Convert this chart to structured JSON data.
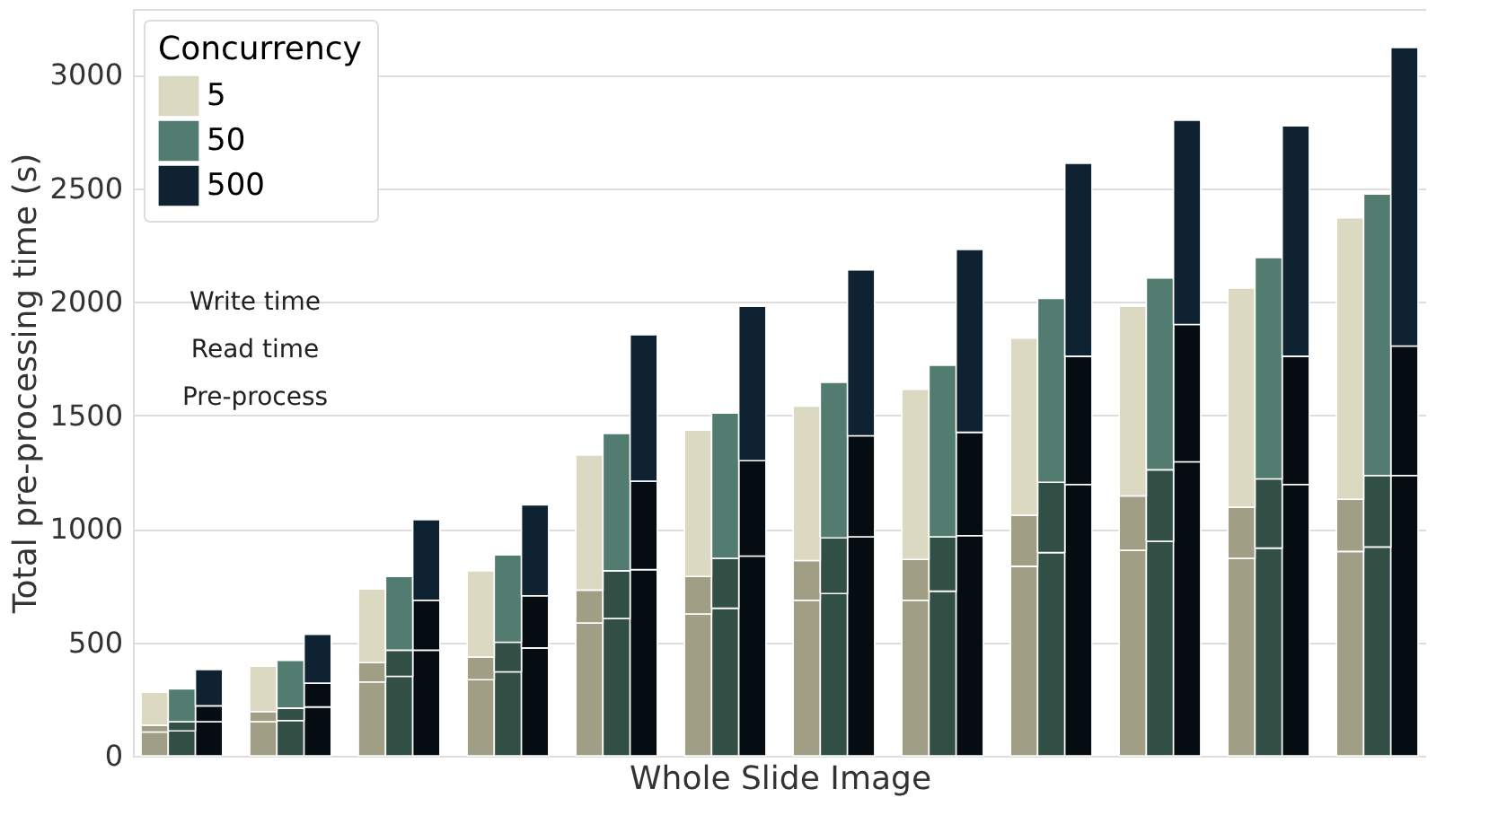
{
  "chart_data": {
    "type": "bar",
    "stacked": true,
    "xlabel": "Whole Slide Image",
    "ylabel": "Total pre-processing time (s)",
    "legend_title": "Concurrency",
    "legend": "top left",
    "grid": "y",
    "ylim": [
      0,
      3290
    ],
    "yticks": [
      0,
      500,
      1000,
      1500,
      2000,
      2500,
      3000
    ],
    "annotations": [
      "Write time",
      "Read time",
      "Pre-process"
    ],
    "categories": [
      null,
      null,
      null,
      null,
      null,
      null,
      null,
      null,
      null,
      null,
      null,
      null,
      null,
      null,
      null,
      null,
      null,
      null,
      null,
      null,
      null,
      null,
      null,
      null,
      null,
      null,
      null,
      null,
      null,
      null,
      null,
      null,
      null,
      null,
      null,
      null,
      null,
      null,
      null,
      null,
      null,
      null,
      null,
      null,
      null,
      null,
      null
    ],
    "series": [
      {
        "color": "#a09f85",
        "values": [
          105,
          null,
          null,
          null,
          150,
          null,
          null,
          null,
          325,
          null,
          null,
          null,
          335,
          null,
          null,
          null,
          585,
          null,
          null,
          null,
          625,
          null,
          null,
          null,
          685,
          null,
          null,
          null,
          685,
          null,
          null,
          null,
          835,
          null,
          null,
          null,
          905,
          null,
          null,
          null,
          870,
          null,
          null,
          null,
          900,
          null,
          null
        ]
      },
      {
        "color": "#324f45",
        "values": [
          null,
          110,
          null,
          null,
          null,
          155,
          null,
          null,
          null,
          350,
          null,
          null,
          null,
          370,
          null,
          null,
          null,
          605,
          null,
          null,
          null,
          650,
          null,
          null,
          null,
          715,
          null,
          null,
          null,
          725,
          null,
          null,
          null,
          895,
          null,
          null,
          null,
          945,
          null,
          null,
          null,
          915,
          null,
          null,
          null,
          920,
          null
        ]
      },
      {
        "color": "#050d12",
        "values": [
          null,
          null,
          150,
          null,
          null,
          null,
          215,
          null,
          null,
          null,
          465,
          null,
          null,
          null,
          475,
          null,
          null,
          null,
          820,
          null,
          null,
          null,
          880,
          null,
          null,
          null,
          965,
          null,
          null,
          null,
          970,
          null,
          null,
          null,
          1195,
          null,
          null,
          null,
          1295,
          null,
          null,
          null,
          1195,
          null,
          null,
          null,
          1235
        ]
      },
      {
        "color": "#a09f85",
        "values": [
          30,
          null,
          null,
          null,
          45,
          null,
          null,
          null,
          85,
          null,
          null,
          null,
          100,
          null,
          null,
          null,
          145,
          null,
          null,
          null,
          165,
          null,
          null,
          null,
          175,
          null,
          null,
          null,
          180,
          null,
          null,
          null,
          225,
          null,
          null,
          null,
          240,
          null,
          null,
          null,
          225,
          null,
          null,
          null,
          230,
          null,
          null
        ]
      },
      {
        "color": "#324f45",
        "values": [
          null,
          40,
          null,
          null,
          null,
          55,
          null,
          null,
          null,
          115,
          null,
          null,
          null,
          130,
          null,
          null,
          null,
          210,
          null,
          null,
          null,
          220,
          null,
          null,
          null,
          245,
          null,
          null,
          null,
          240,
          null,
          null,
          null,
          310,
          null,
          null,
          null,
          315,
          null,
          null,
          null,
          305,
          null,
          null,
          null,
          315,
          null
        ]
      },
      {
        "color": "#050d12",
        "values": [
          null,
          null,
          70,
          null,
          null,
          null,
          105,
          null,
          null,
          null,
          220,
          null,
          null,
          null,
          230,
          null,
          null,
          null,
          390,
          null,
          null,
          null,
          420,
          null,
          null,
          null,
          445,
          null,
          null,
          null,
          455,
          null,
          null,
          null,
          565,
          null,
          null,
          null,
          605,
          null,
          null,
          null,
          565,
          null,
          null,
          null,
          570
        ]
      },
      {
        "name": "5",
        "color": "#dcd9c2",
        "values": [
          145,
          null,
          null,
          null,
          200,
          null,
          null,
          null,
          325,
          null,
          null,
          null,
          380,
          null,
          null,
          null,
          595,
          null,
          null,
          null,
          645,
          null,
          null,
          null,
          680,
          null,
          null,
          null,
          750,
          null,
          null,
          null,
          780,
          null,
          null,
          null,
          835,
          null,
          null,
          null,
          965,
          null,
          null,
          null,
          1240,
          null,
          null
        ]
      },
      {
        "name": "50",
        "color": "#527c70",
        "values": [
          null,
          145,
          null,
          null,
          null,
          210,
          null,
          null,
          null,
          325,
          null,
          null,
          null,
          385,
          null,
          null,
          null,
          605,
          null,
          null,
          null,
          640,
          null,
          null,
          null,
          685,
          null,
          null,
          null,
          755,
          null,
          null,
          null,
          810,
          null,
          null,
          null,
          845,
          null,
          null,
          null,
          975,
          null,
          null,
          null,
          1240,
          null
        ]
      },
      {
        "name": "500",
        "color": "#0f2231",
        "values": [
          null,
          null,
          160,
          null,
          null,
          null,
          215,
          null,
          null,
          null,
          355,
          null,
          null,
          null,
          400,
          null,
          null,
          null,
          645,
          null,
          null,
          null,
          680,
          null,
          null,
          null,
          730,
          null,
          null,
          null,
          805,
          null,
          null,
          null,
          850,
          null,
          null,
          null,
          900,
          null,
          null,
          null,
          1015,
          null,
          null,
          null,
          1315
        ]
      }
    ]
  }
}
